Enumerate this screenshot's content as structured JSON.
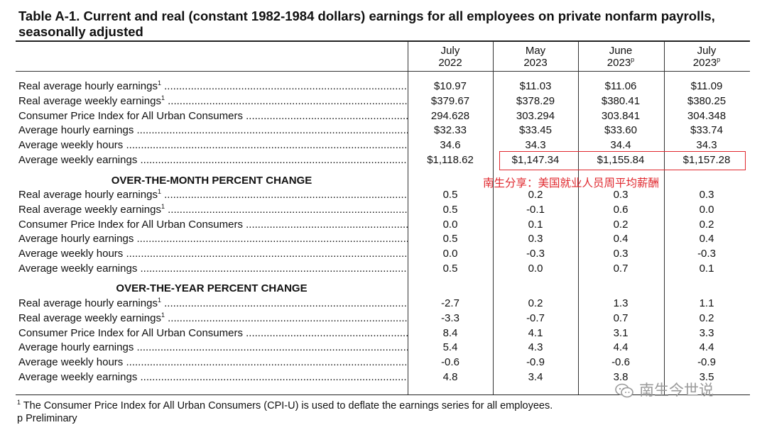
{
  "title": "Table A-1. Current and real (constant 1982-1984 dollars) earnings for all employees on private nonfarm payrolls, seasonally adjusted",
  "columns": [
    {
      "month": "July",
      "year": "2022",
      "mark": ""
    },
    {
      "month": "May",
      "year": "2023",
      "mark": ""
    },
    {
      "month": "June",
      "year": "2023",
      "mark": "p"
    },
    {
      "month": "July",
      "year": "2023",
      "mark": "p"
    }
  ],
  "levels": [
    {
      "label": "Real average hourly earnings",
      "note": "1",
      "values": [
        "$10.97",
        "$11.03",
        "$11.06",
        "$11.09"
      ]
    },
    {
      "label": "Real average weekly earnings",
      "note": "1",
      "values": [
        "$379.67",
        "$378.29",
        "$380.41",
        "$380.25"
      ]
    },
    {
      "label": "Consumer Price Index for All Urban Consumers",
      "note": "",
      "values": [
        "294.628",
        "303.294",
        "303.841",
        "304.348"
      ]
    },
    {
      "label": "Average hourly earnings",
      "note": "",
      "values": [
        "$32.33",
        "$33.45",
        "$33.60",
        "$33.74"
      ]
    },
    {
      "label": "Average weekly hours",
      "note": "",
      "values": [
        "34.6",
        "34.3",
        "34.4",
        "34.3"
      ]
    },
    {
      "label": "Average weekly earnings",
      "note": "",
      "values": [
        "$1,118.62",
        "$1,147.34",
        "$1,155.84",
        "$1,157.28"
      ]
    }
  ],
  "month_section": {
    "heading": "OVER-THE-MONTH PERCENT CHANGE",
    "rows": [
      {
        "label": "Real average hourly earnings",
        "note": "1",
        "values": [
          "0.5",
          "0.2",
          "0.3",
          "0.3"
        ]
      },
      {
        "label": "Real average weekly earnings",
        "note": "1",
        "values": [
          "0.5",
          "-0.1",
          "0.6",
          "0.0"
        ]
      },
      {
        "label": "Consumer Price Index for All Urban Consumers",
        "note": "",
        "values": [
          "0.0",
          "0.1",
          "0.2",
          "0.2"
        ]
      },
      {
        "label": "Average hourly earnings",
        "note": "",
        "values": [
          "0.5",
          "0.3",
          "0.4",
          "0.4"
        ]
      },
      {
        "label": "Average weekly hours",
        "note": "",
        "values": [
          "0.0",
          "-0.3",
          "0.3",
          "-0.3"
        ]
      },
      {
        "label": "Average weekly earnings",
        "note": "",
        "values": [
          "0.5",
          "0.0",
          "0.7",
          "0.1"
        ]
      }
    ]
  },
  "year_section": {
    "heading": "OVER-THE-YEAR PERCENT CHANGE",
    "rows": [
      {
        "label": "Real average hourly earnings",
        "note": "1",
        "values": [
          "-2.7",
          "0.2",
          "1.3",
          "1.1"
        ]
      },
      {
        "label": "Real average weekly earnings",
        "note": "1",
        "values": [
          "-3.3",
          "-0.7",
          "0.7",
          "0.2"
        ]
      },
      {
        "label": "Consumer Price Index for All Urban Consumers",
        "note": "",
        "values": [
          "8.4",
          "4.1",
          "3.1",
          "3.3"
        ]
      },
      {
        "label": "Average hourly earnings",
        "note": "",
        "values": [
          "5.4",
          "4.3",
          "4.4",
          "4.4"
        ]
      },
      {
        "label": "Average weekly hours",
        "note": "",
        "values": [
          "-0.6",
          "-0.9",
          "-0.6",
          "-0.9"
        ]
      },
      {
        "label": "Average weekly earnings",
        "note": "",
        "values": [
          "4.8",
          "3.4",
          "3.8",
          "3.5"
        ]
      }
    ]
  },
  "annotation": "南生分享：美国就业人员周平均薪酬",
  "footnotes": {
    "note1_mark": "1",
    "note1": "The Consumer Price Index for All Urban Consumers (CPI-U) is used to deflate the earnings series for all employees.",
    "notep_mark": "p",
    "notep": "Preliminary"
  },
  "watermark": "南生今世说",
  "colors": {
    "accent": "#e0282e",
    "watermark": "#9a9a9a"
  }
}
